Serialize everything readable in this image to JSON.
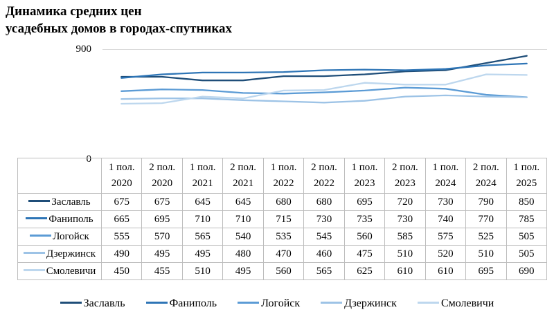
{
  "chart_data": {
    "type": "line",
    "title_lines": [
      "Динамика средних цен",
      "усадебных домов в городах-спутниках"
    ],
    "title": "Динамика средних цен усадебных домов в городах-спутниках",
    "categories": [
      "1 пол. 2020",
      "2 пол. 2020",
      "1 пол. 2021",
      "2 пол. 2021",
      "1 пол. 2022",
      "2 пол. 2022",
      "1 пол. 2023",
      "2 пол. 2023",
      "1 пол. 2024",
      "2 пол. 2024",
      "1 пол. 2025"
    ],
    "series": [
      {
        "name": "Заславль",
        "color": "#1f4e79",
        "values": [
          675,
          675,
          645,
          645,
          680,
          680,
          695,
          720,
          730,
          790,
          850
        ]
      },
      {
        "name": "Фаниполь",
        "color": "#2e75b6",
        "values": [
          665,
          695,
          710,
          710,
          715,
          730,
          735,
          730,
          740,
          770,
          785
        ]
      },
      {
        "name": "Логойск",
        "color": "#5b9bd5",
        "values": [
          555,
          570,
          565,
          540,
          535,
          545,
          560,
          585,
          575,
          525,
          505
        ]
      },
      {
        "name": "Дзержинск",
        "color": "#9dc3e6",
        "values": [
          490,
          495,
          495,
          480,
          470,
          460,
          475,
          510,
          520,
          510,
          505
        ]
      },
      {
        "name": "Смолевичи",
        "color": "#bdd7ee",
        "values": [
          450,
          455,
          510,
          495,
          560,
          565,
          625,
          610,
          610,
          695,
          690
        ]
      }
    ],
    "ylim": [
      0,
      900
    ],
    "yticks": [
      "900",
      "0"
    ],
    "grid": "single top gridline at 900",
    "gridline_color": "#d9d9d9",
    "table_border_color": "#bdbdbd",
    "legend_position": "bottom",
    "data_table_shown": true
  }
}
